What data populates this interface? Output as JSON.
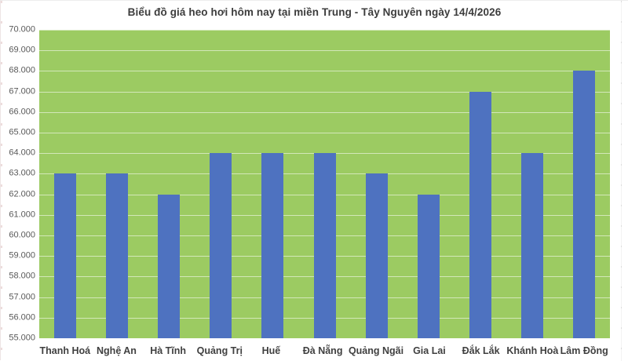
{
  "title": "Biểu đồ giá heo hơi hôm nay tại miền Trung - Tây Nguyên ngày 14/4/2026",
  "chart_data": {
    "type": "bar",
    "title": "Biểu đồ giá heo hơi hôm nay tại miền Trung - Tây Nguyên ngày 14/4/2026",
    "categories": [
      "Thanh Hoá",
      "Nghệ An",
      "Hà Tĩnh",
      "Quảng Trị",
      "Huế",
      "Đà Nẵng",
      "Quảng Ngãi",
      "Gia Lai",
      "Đắk Lắk",
      "Khánh Hoà",
      "Lâm Đồng"
    ],
    "values": [
      63000,
      63000,
      62000,
      64000,
      64000,
      64000,
      63000,
      62000,
      67000,
      64000,
      68000
    ],
    "xlabel": "",
    "ylabel": "",
    "ylim": [
      55000,
      70000
    ],
    "ytick_step": 1000,
    "ytick_labels": [
      "70.000",
      "69.000",
      "68.000",
      "67.000",
      "66.000",
      "65.000",
      "64.000",
      "63.000",
      "62.000",
      "61.000",
      "60.000",
      "59.000",
      "58.000",
      "57.000",
      "56.000",
      "55.000"
    ],
    "grid": true,
    "legend_position": "none",
    "colors": {
      "bar": "#4E72C0",
      "plot_background": "#9CCB62",
      "gridline": "rgba(255,255,255,0.55)",
      "title_text": "#3C3C3C",
      "axis_text": "#595959",
      "category_text": "#404040",
      "page_background": "#FFFFFF"
    }
  }
}
